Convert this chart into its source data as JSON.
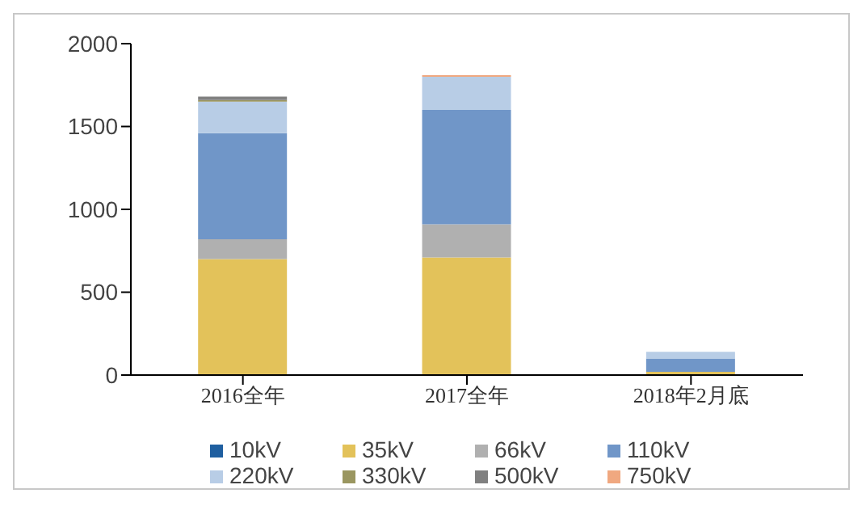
{
  "chart_data": {
    "type": "bar",
    "stacked": true,
    "categories": [
      "2016全年",
      "2017全年",
      "2018年2月底"
    ],
    "series": [
      {
        "name": "10kV",
        "color": "#1f5fa0",
        "values": [
          0,
          0,
          0
        ]
      },
      {
        "name": "35kV",
        "color": "#e3c25a",
        "values": [
          700,
          710,
          20
        ]
      },
      {
        "name": "66kV",
        "color": "#b0b0b0",
        "values": [
          120,
          200,
          0
        ]
      },
      {
        "name": "110kV",
        "color": "#7096c8",
        "values": [
          640,
          690,
          80
        ]
      },
      {
        "name": "220kV",
        "color": "#b8cde6",
        "values": [
          190,
          200,
          40
        ]
      },
      {
        "name": "330kV",
        "color": "#9a9660",
        "values": [
          10,
          0,
          0
        ]
      },
      {
        "name": "500kV",
        "color": "#808080",
        "values": [
          20,
          0,
          0
        ]
      },
      {
        "name": "750kV",
        "color": "#f0a880",
        "values": [
          0,
          10,
          0
        ]
      }
    ],
    "ylim": [
      0,
      2000
    ],
    "yticks": [
      0,
      500,
      1000,
      1500,
      2000
    ],
    "grid": false,
    "legend": "bottom"
  }
}
